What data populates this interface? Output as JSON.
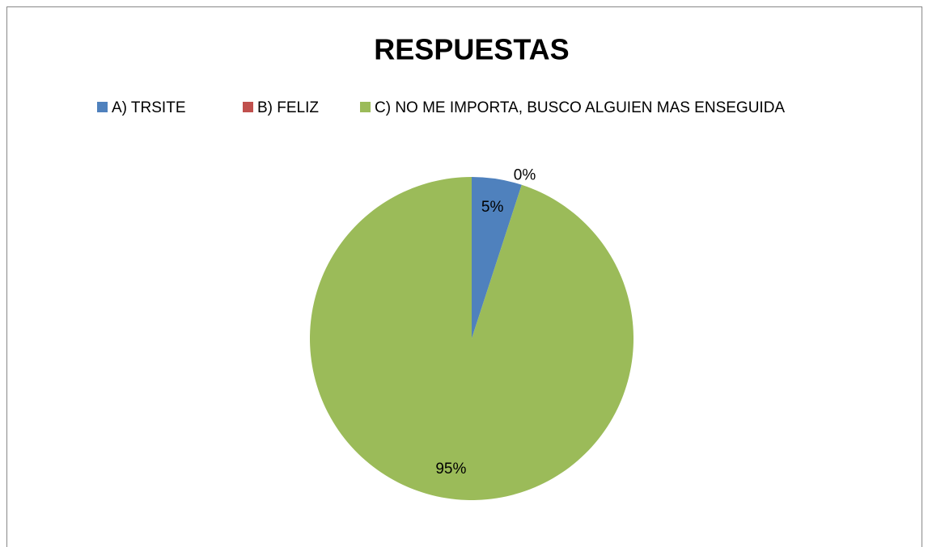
{
  "chart_data": {
    "type": "pie",
    "title": "RESPUESTAS",
    "categories": [
      "A) TRSITE",
      "B) FELIZ",
      "C) NO ME IMPORTA, BUSCO ALGUIEN MAS ENSEGUIDA"
    ],
    "values": [
      5,
      0,
      95
    ],
    "value_labels": [
      "5%",
      "0%",
      "95%"
    ],
    "colors": [
      "#4f81bd",
      "#c0504d",
      "#9bbb59"
    ],
    "legend": "top"
  }
}
